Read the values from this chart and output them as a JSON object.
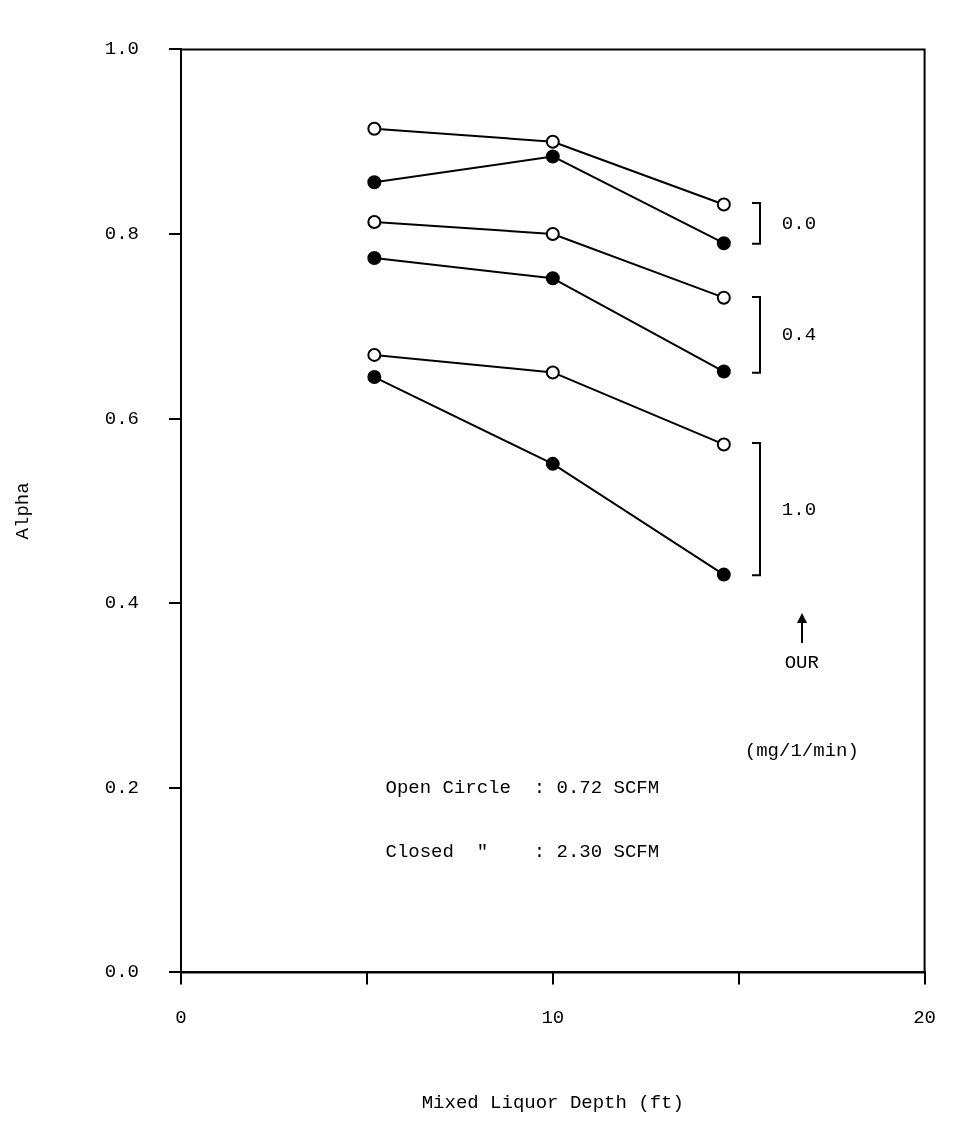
{
  "chart_data": {
    "type": "line",
    "xlabel": "Mixed Liquor Depth (ft)",
    "ylabel": "Alpha",
    "xlim": [
      0,
      20
    ],
    "xticks": [
      0,
      {
        "value": 5,
        "label": null
      },
      10,
      {
        "value": 15,
        "label": null
      },
      20
    ],
    "ylim": [
      0,
      1
    ],
    "yticks": [
      {
        "value": 0,
        "label": "0.0"
      },
      0.2,
      0.4,
      0.6,
      0.8,
      {
        "value": 1,
        "label": "1.0"
      }
    ],
    "x": [
      5.2,
      10,
      14.6
    ],
    "series": [
      {
        "color": "#000000",
        "values": [
          0.914,
          0.9,
          0.832
        ]
      },
      {
        "color": "#000000",
        "values": [
          0.856,
          0.884,
          0.79
        ]
      },
      {
        "color": "#000000",
        "values": [
          0.813,
          0.8,
          0.731
        ]
      },
      {
        "color": "#000000",
        "values": [
          0.774,
          0.752,
          0.651
        ]
      },
      {
        "color": "#000000",
        "values": [
          0.669,
          0.65,
          0.572
        ]
      },
      {
        "color": "#000000",
        "values": [
          0.645,
          0.551,
          0.431
        ]
      }
    ],
    "marker": "circle",
    "grid": false,
    "legend": false,
    "annotations": [
      "0.0",
      "0.4",
      "1.0",
      "OUR",
      "(mg/1/min)",
      "Open Circle  : 0.72 SCFM",
      "Closed  \"    : 2.30 SCFM"
    ]
  }
}
